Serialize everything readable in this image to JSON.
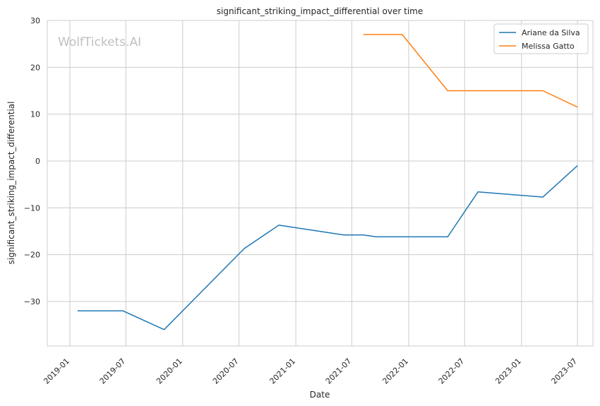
{
  "chart_data": {
    "type": "line",
    "title": "significant_striking_impact_differential over time",
    "xlabel": "Date",
    "ylabel": "significant_striking_impact_differential",
    "watermark": "WolfTickets.AI",
    "grid": true,
    "legend_position": "top-right",
    "x_ticks": [
      "2019-01",
      "2019-07",
      "2020-01",
      "2020-07",
      "2021-01",
      "2021-07",
      "2022-01",
      "2022-07",
      "2023-01",
      "2023-07"
    ],
    "y_ticks": [
      30,
      20,
      10,
      0,
      -10,
      -20,
      -30
    ],
    "y_tick_labels": [
      "30",
      "20",
      "10",
      "0",
      "−10",
      "−20",
      "−30"
    ],
    "ylim": [
      -39.5,
      30
    ],
    "xlim": [
      "2018-10-20",
      "2023-08-20"
    ],
    "series": [
      {
        "name": "Ariane da Silva",
        "color": "#1f77b4",
        "x": [
          "2019-01-26",
          "2019-06-22",
          "2019-11-02",
          "2020-07-18",
          "2020-11-07",
          "2021-06-05",
          "2021-08-07",
          "2021-09-18",
          "2022-05-07",
          "2022-08-13",
          "2023-03-11",
          "2023-07-01"
        ],
        "values": [
          -32,
          -32,
          -36,
          -18.7,
          -13.7,
          -15.8,
          -15.8,
          -16.2,
          -16.2,
          -6.6,
          -7.7,
          -1
        ]
      },
      {
        "name": "Melissa Gatto",
        "color": "#ff7f0e",
        "x": [
          "2021-08-07",
          "2021-12-11",
          "2022-05-07",
          "2023-03-11",
          "2023-07-01"
        ],
        "values": [
          27,
          27,
          15,
          15,
          11.5
        ]
      }
    ]
  }
}
